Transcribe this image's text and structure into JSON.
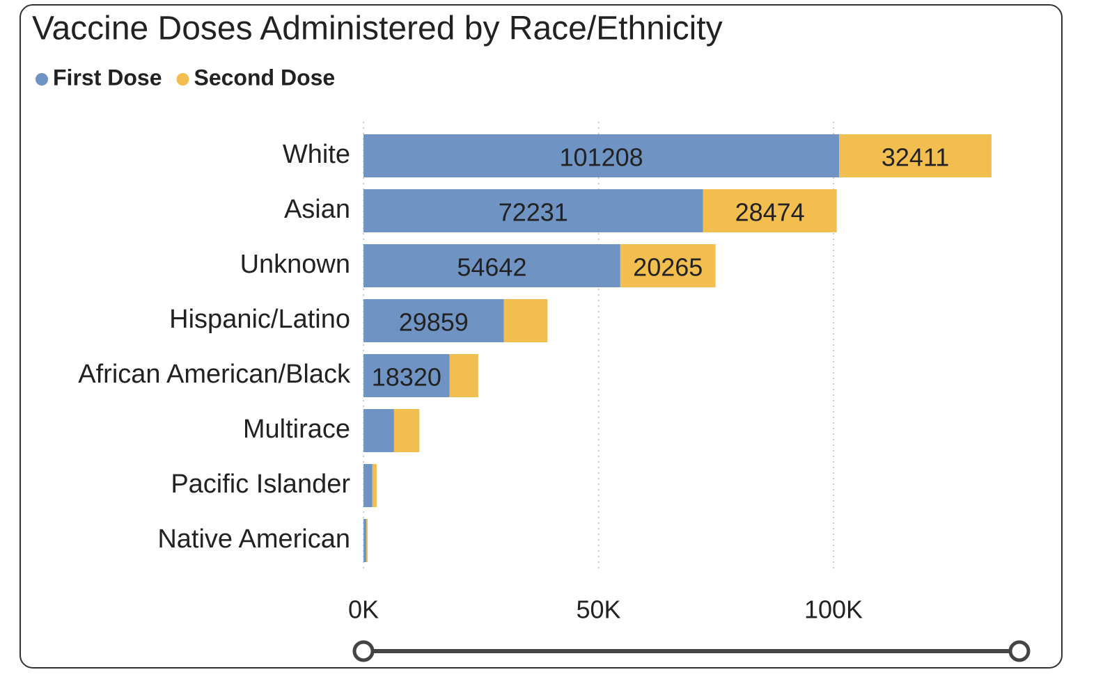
{
  "chart_data": {
    "type": "stacked-bar-horizontal",
    "title": "Vaccine Doses Administered by Race/Ethnicity",
    "categories": [
      "White",
      "Asian",
      "Unknown",
      "Hispanic/Latino",
      "African American/Black",
      "Multirace",
      "Pacific Islander",
      "Native American"
    ],
    "series": [
      {
        "name": "First Dose",
        "color": "#6f93c2",
        "values": [
          101208,
          72231,
          54642,
          29859,
          18320,
          6500,
          1900,
          600
        ]
      },
      {
        "name": "Second Dose",
        "color": "#f2be4f",
        "values": [
          32411,
          28474,
          20265,
          9300,
          6100,
          5400,
          900,
          300
        ]
      }
    ],
    "xlim": [
      0,
      140000
    ],
    "xticks": [
      {
        "value": 0,
        "label": "0K"
      },
      {
        "value": 50000,
        "label": "50K"
      },
      {
        "value": 100000,
        "label": "100K"
      }
    ],
    "grid": true,
    "legend": "top-left"
  }
}
